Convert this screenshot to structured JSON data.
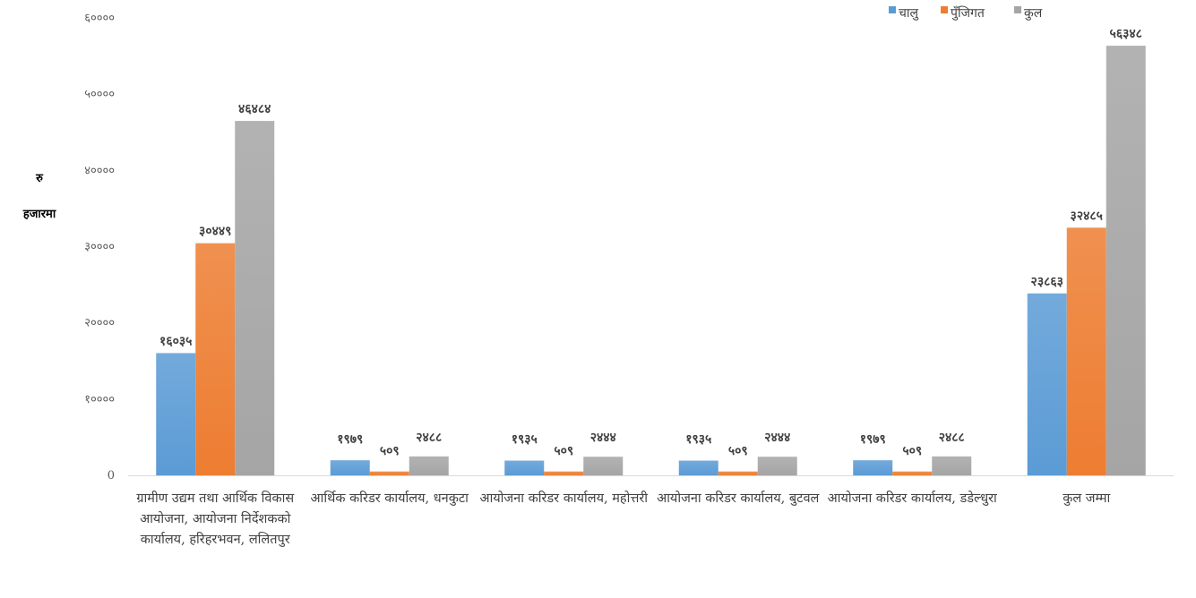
{
  "chart_data": {
    "type": "bar",
    "ylabel_line1": "रु",
    "ylabel_line2": "हजारमा",
    "ylim": [
      0,
      60000
    ],
    "y_ticks": [
      {
        "value": 0,
        "label": "0"
      },
      {
        "value": 10000,
        "label": "१००००"
      },
      {
        "value": 20000,
        "label": "२००००"
      },
      {
        "value": 30000,
        "label": "३००००"
      },
      {
        "value": 40000,
        "label": "४००००"
      },
      {
        "value": 50000,
        "label": "५००००"
      },
      {
        "value": 60000,
        "label": "६००००"
      }
    ],
    "legend_position": "top-right",
    "categories": [
      "ग्रामीण उद्यम तथा आर्थिक विकास आयोजना, आयोजना निर्देशकको कार्यालय, हरिहरभवन, ललितपुर",
      "आर्थिक करिडर कार्यालय, धनकुटा",
      "आयोजना करिडर कार्यालय, महोत्तरी",
      "आयोजना करिडर कार्यालय, बुटवल",
      "आयोजना करिडर कार्यालय, डडेल्धुरा",
      "कुल जम्मा"
    ],
    "series": [
      {
        "name": "चालु",
        "color": "#5B9BD5",
        "values": [
          16035,
          1979,
          1935,
          1935,
          1979,
          23863
        ],
        "labels": [
          "१६०३५",
          "१९७९",
          "१९३५",
          "१९३५",
          "१९७९",
          "२३८६३"
        ]
      },
      {
        "name": "पुँजिगत",
        "color": "#ED7D31",
        "values": [
          30449,
          509,
          509,
          509,
          509,
          32485
        ],
        "labels": [
          "३०४४९",
          "५०९",
          "५०९",
          "५०९",
          "५०९",
          "३२४८५"
        ]
      },
      {
        "name": "कुल",
        "color": "#A5A5A5",
        "values": [
          46484,
          2488,
          2444,
          2444,
          2488,
          56348
        ],
        "labels": [
          "४६४८४",
          "२४८८",
          "२४४४",
          "२४४४",
          "२४८८",
          "५६३४८"
        ]
      }
    ]
  }
}
